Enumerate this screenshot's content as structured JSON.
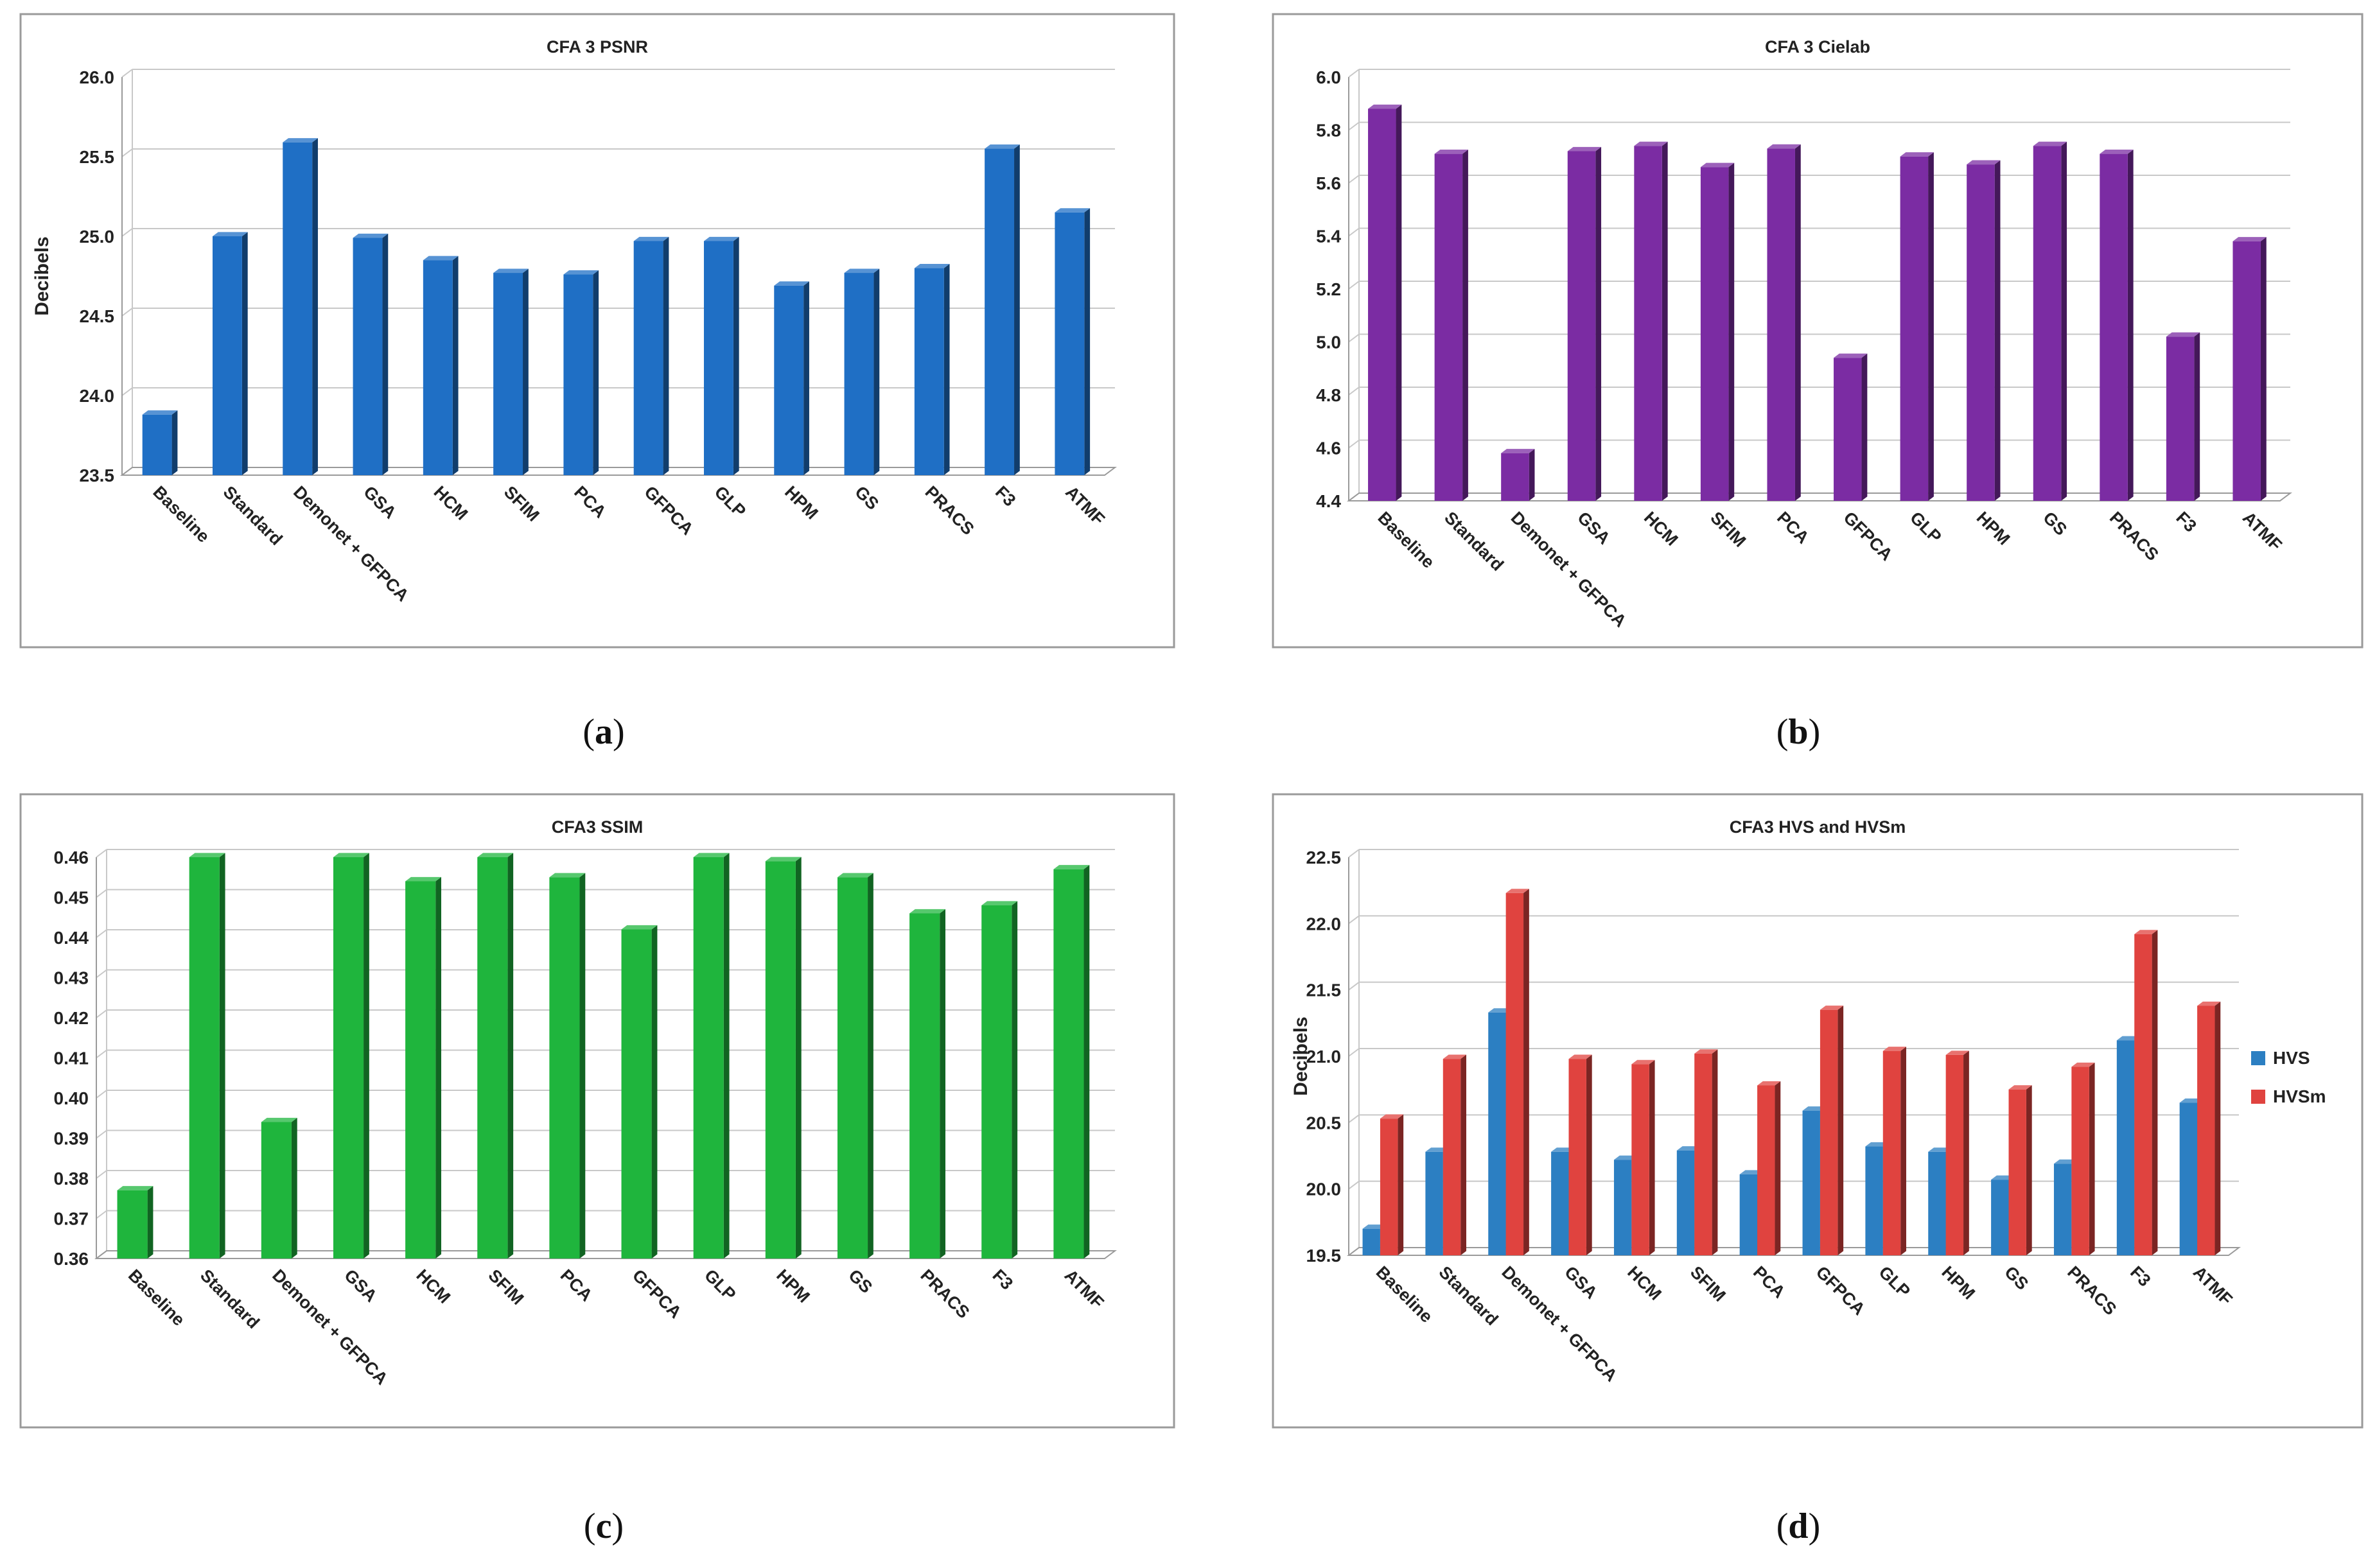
{
  "panels": [
    {
      "label": "a"
    },
    {
      "label": "b"
    },
    {
      "label": "c"
    },
    {
      "label": "d"
    }
  ],
  "chart_data": [
    {
      "type": "bar",
      "title": "CFA 3 PSNR",
      "ylabel": "Decibels",
      "xlabel": "",
      "ylim": [
        23.5,
        26.0
      ],
      "yticks": [
        "23.5",
        "24.0",
        "24.5",
        "25.0",
        "25.5",
        "26.0"
      ],
      "grid": true,
      "categories": [
        "Baseline",
        "Standard",
        "Demonet + GFPCA",
        "GSA",
        "HCM",
        "SFIM",
        "PCA",
        "GFPCA",
        "GLP",
        "HPM",
        "GS",
        "PRACS",
        "F3",
        "ATMF"
      ],
      "series": [
        {
          "values": [
            23.88,
            25.0,
            25.59,
            24.99,
            24.85,
            24.77,
            24.76,
            24.97,
            24.97,
            24.69,
            24.77,
            24.8,
            25.55,
            25.15
          ],
          "color": "#1f6fc5"
        }
      ]
    },
    {
      "type": "bar",
      "title": "CFA 3 Cielab",
      "ylabel": "",
      "xlabel": "",
      "ylim": [
        4.4,
        6.0
      ],
      "yticks": [
        "4.4",
        "4.6",
        "4.8",
        "5.0",
        "5.2",
        "5.4",
        "5.6",
        "5.8",
        "6.0"
      ],
      "grid": true,
      "categories": [
        "Baseline",
        "Standard",
        "Demonet + GFPCA",
        "GSA",
        "HCM",
        "SFIM",
        "PCA",
        "GFPCA",
        "GLP",
        "HPM",
        "GS",
        "PRACS",
        "F3",
        "ATMF"
      ],
      "series": [
        {
          "values": [
            5.88,
            5.71,
            4.58,
            5.72,
            5.74,
            5.66,
            5.73,
            4.94,
            5.7,
            5.67,
            5.74,
            5.71,
            5.02,
            5.38
          ],
          "color": "#7b2ca3"
        }
      ]
    },
    {
      "type": "bar",
      "title": "CFA3 SSIM",
      "ylabel": "",
      "xlabel": "",
      "ylim": [
        0.36,
        0.46
      ],
      "yticks": [
        "0.36",
        "0.37",
        "0.38",
        "0.39",
        "0.40",
        "0.41",
        "0.42",
        "0.43",
        "0.44",
        "0.45",
        "0.46"
      ],
      "grid": true,
      "categories": [
        "Baseline",
        "Standard",
        "Demonet + GFPCA",
        "GSA",
        "HCM",
        "SFIM",
        "PCA",
        "GFPCA",
        "GLP",
        "HPM",
        "GS",
        "PRACS",
        "F3",
        "ATMF"
      ],
      "series": [
        {
          "values": [
            0.377,
            0.46,
            0.394,
            0.46,
            0.454,
            0.46,
            0.455,
            0.442,
            0.46,
            0.459,
            0.455,
            0.446,
            0.448,
            0.457
          ],
          "color": "#1fb53d"
        }
      ]
    },
    {
      "type": "bar",
      "title": "CFA3 HVS and HVSm",
      "ylabel": "Decibels",
      "xlabel": "",
      "ylim": [
        19.5,
        22.5
      ],
      "yticks": [
        "19.5",
        "20.0",
        "20.5",
        "21.0",
        "21.5",
        "22.0",
        "22.5"
      ],
      "grid": true,
      "legend_position": "right",
      "categories": [
        "Baseline",
        "Standard",
        "Demonet + GFPCA",
        "GSA",
        "HCM",
        "SFIM",
        "PCA",
        "GFPCA",
        "GLP",
        "HPM",
        "GS",
        "PRACS",
        "F3",
        "ATMF"
      ],
      "series": [
        {
          "name": "HVS",
          "values": [
            19.7,
            20.28,
            21.33,
            20.28,
            20.22,
            20.29,
            20.11,
            20.59,
            20.32,
            20.28,
            20.07,
            20.19,
            21.12,
            20.65
          ],
          "color": "#2c7fc2"
        },
        {
          "name": "HVSm",
          "values": [
            20.53,
            20.98,
            22.23,
            20.98,
            20.94,
            21.02,
            20.78,
            21.35,
            21.04,
            21.01,
            20.75,
            20.92,
            21.92,
            21.38
          ],
          "color": "#e0433f"
        }
      ]
    }
  ]
}
